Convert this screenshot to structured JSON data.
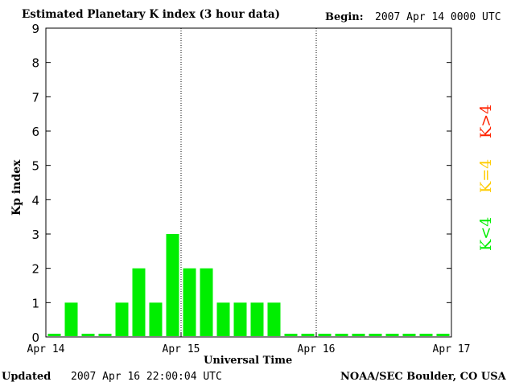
{
  "header": {
    "title": "Estimated Planetary K index (3 hour data)",
    "begin_label": "Begin:",
    "begin_value": "2007 Apr 14 0000 UTC"
  },
  "footer": {
    "updated_label": "Updated",
    "updated_value": "2007 Apr 16 22:00:04 UTC",
    "credit": "NOAA/SEC Boulder, CO USA"
  },
  "legend": {
    "gt": {
      "label": "K>4",
      "color": "#ff2200"
    },
    "eq": {
      "label": "K=4",
      "color": "#ffcc00"
    },
    "lt": {
      "label": "K<4",
      "color": "#00ee00"
    }
  },
  "chart_data": {
    "type": "bar",
    "title": "Estimated Planetary K index (3 hour data)",
    "xlabel": "Universal Time",
    "ylabel": "Kp index",
    "ylim": [
      0,
      9
    ],
    "yticks": [
      "0",
      "1",
      "2",
      "3",
      "4",
      "5",
      "6",
      "7",
      "8",
      "9"
    ],
    "xlim_days": [
      "Apr 14",
      "Apr 17"
    ],
    "xticks": [
      "Apr 14",
      "Apr 15",
      "Apr 16",
      "Apr 17"
    ],
    "day_dividers": [
      "Apr 15",
      "Apr 16"
    ],
    "bar_color": "#00ee00",
    "grid": false,
    "legend_position": "right",
    "series": [
      {
        "values": [
          0,
          1,
          0,
          0,
          1,
          2,
          1,
          3,
          2,
          2,
          1,
          1,
          1,
          1,
          0,
          0,
          0,
          0,
          0,
          0,
          0,
          0,
          0,
          0
        ]
      }
    ]
  }
}
